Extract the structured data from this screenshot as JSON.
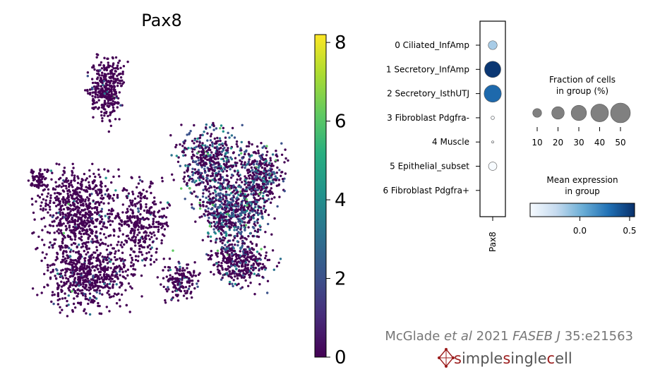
{
  "chart_data": [
    {
      "type": "scatter",
      "title": "Pax8",
      "xlabel": "",
      "ylabel": "",
      "colorbar": {
        "colormap": "viridis",
        "range": [
          0,
          8.2
        ],
        "ticks": [
          {
            "value": 0,
            "label": "0"
          },
          {
            "value": 2,
            "label": "2"
          },
          {
            "value": 4,
            "label": "4"
          },
          {
            "value": 6,
            "label": "6"
          },
          {
            "value": 8,
            "label": "8"
          }
        ]
      },
      "point_color_low": "#440154",
      "point_color_high": "#fde725",
      "description_of_points": "thousands of UMAP cells; expression mostly 0 (purple), higher in right cluster"
    },
    {
      "type": "dotplot",
      "gene": "Pax8",
      "groups": [
        {
          "label": "0 Ciliated_InfAmp",
          "fraction_pct": 10,
          "mean_expression": -0.15
        },
        {
          "label": "1 Secretory_InfAmp",
          "fraction_pct": 34,
          "mean_expression": 0.52
        },
        {
          "label": "2 Secretory_IsthUTJ",
          "fraction_pct": 38,
          "mean_expression": 0.32
        },
        {
          "label": "3 Fibroblast Pdgfra-",
          "fraction_pct": 1.5,
          "mean_expression": -0.5
        },
        {
          "label": "4 Muscle",
          "fraction_pct": 0.6,
          "mean_expression": -0.5
        },
        {
          "label": "5 Epithelial_subset",
          "fraction_pct": 9,
          "mean_expression": -0.5
        },
        {
          "label": "6 Fibroblast Pdgfra+",
          "fraction_pct": 0,
          "mean_expression": -0.5
        }
      ],
      "size_legend": {
        "title_line1": "Fraction of cells",
        "title_line2": "in group (%)",
        "values": [
          10,
          20,
          30,
          40,
          50
        ],
        "labels": [
          "10",
          "20",
          "30",
          "40",
          "50"
        ]
      },
      "color_legend": {
        "title_line1": "Mean expression",
        "title_line2": "in group",
        "range": [
          -0.5,
          0.55
        ],
        "ticks": [
          {
            "value": 0.0,
            "label": "0.0"
          },
          {
            "value": 0.5,
            "label": "0.5"
          }
        ],
        "colormap": "Blues"
      }
    }
  ],
  "citation": {
    "author": "McGlade ",
    "etal": "et al",
    "year": " 2021 ",
    "journal": "FASEB J",
    "ref": " 35:e21563"
  },
  "logo": {
    "text": "simplesinglecell",
    "text_color": "#555555",
    "accent_color": "#9b1c1c"
  },
  "colors": {
    "citation": "#777777"
  }
}
